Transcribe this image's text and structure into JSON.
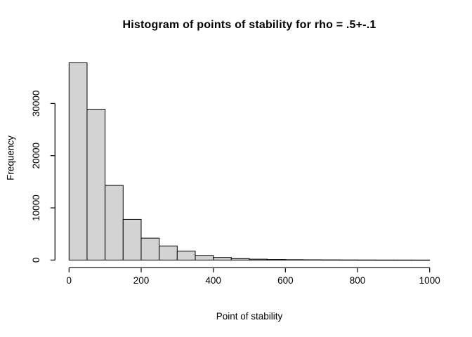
{
  "canvas": {
    "background": "#ffffff"
  },
  "chart_data": {
    "type": "bar",
    "subtype": "histogram",
    "title": "Histogram of points of stability for rho = .5+-.1",
    "xlabel": "Point of stability",
    "ylabel": "Frequency",
    "bin_start": 0,
    "bin_width": 50,
    "values": [
      37800,
      28900,
      14300,
      7800,
      4200,
      2700,
      1700,
      900,
      500,
      280,
      170,
      110,
      75,
      50,
      35,
      25,
      18,
      12,
      9,
      7
    ],
    "x_ticks": [
      0,
      200,
      400,
      600,
      800,
      1000
    ],
    "y_ticks": [
      0,
      10000,
      20000,
      30000
    ],
    "xlim": [
      0,
      1000
    ],
    "ylim": [
      0,
      38000
    ],
    "grid": false,
    "legend": null,
    "bar_fill": "#d3d3d3",
    "bar_border": "#000000",
    "axis_color": "#000000",
    "text_color": "#000000",
    "background": "#ffffff"
  }
}
